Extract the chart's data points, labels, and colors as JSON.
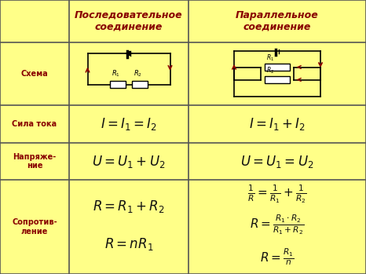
{
  "bg_color": "#FFFF88",
  "border_color": "#555555",
  "text_color_red": "#880000",
  "text_color_black": "#111111",
  "col1_header": "Последовательное\nсоединение",
  "col2_header": "Параллельное\nсоединение",
  "row_labels": [
    "Схема",
    "Сила тока",
    "Напряже-\nние",
    "Сопротив-\nление"
  ],
  "cols": [
    0,
    88,
    240,
    466
  ],
  "row_tops": [
    349,
    295,
    215,
    167,
    120,
    0
  ],
  "formula_fontsize": 12,
  "header_fontsize": 9,
  "label_fontsize": 7
}
